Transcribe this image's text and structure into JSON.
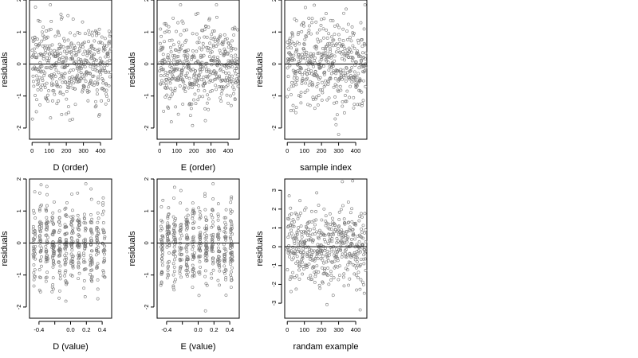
{
  "chart_data": [
    {
      "type": "scatter",
      "xlabel": "D (order)",
      "ylabel": "residuals",
      "xlim": [
        -15,
        465
      ],
      "ylim": [
        -2.35,
        2.0
      ],
      "xticks": [
        0,
        100,
        200,
        300,
        400
      ],
      "yticks": [
        -2,
        -1,
        0,
        1,
        2
      ],
      "reference_line_y": 0,
      "n_points": 460,
      "x_kind": "order",
      "y_range": [
        -2.2,
        1.85
      ]
    },
    {
      "type": "scatter",
      "xlabel": "E (order)",
      "ylabel": "residuals",
      "xlim": [
        -15,
        465
      ],
      "ylim": [
        -2.35,
        2.0
      ],
      "xticks": [
        0,
        100,
        200,
        300,
        400
      ],
      "yticks": [
        -2,
        -1,
        0,
        1,
        2
      ],
      "reference_line_y": 0,
      "n_points": 460,
      "x_kind": "order",
      "y_range": [
        -2.2,
        1.85
      ]
    },
    {
      "type": "scatter",
      "xlabel": "sample index",
      "ylabel": "residuals",
      "xlim": [
        -15,
        465
      ],
      "ylim": [
        -2.35,
        2.0
      ],
      "xticks": [
        0,
        100,
        200,
        300,
        400
      ],
      "yticks": [
        -2,
        -1,
        0,
        1,
        2
      ],
      "reference_line_y": 0,
      "n_points": 460,
      "x_kind": "order",
      "y_range": [
        -2.2,
        1.85
      ]
    },
    {
      "type": "scatter",
      "xlabel": "D (value)",
      "ylabel": "residuals",
      "xlim": [
        -0.52,
        0.52
      ],
      "ylim": [
        -2.35,
        2.0
      ],
      "xticks": [
        -0.4,
        -0.2,
        0.0,
        0.2,
        0.4
      ],
      "xtick_labels": [
        "-0.4",
        "",
        "0.0",
        "0.2",
        "0.4"
      ],
      "yticks": [
        -2,
        -1,
        0,
        1,
        2
      ],
      "reference_line_y": 0,
      "n_points": 460,
      "x_kind": "value",
      "x_levels": [
        -0.46,
        -0.38,
        -0.3,
        -0.22,
        -0.14,
        -0.06,
        0.02,
        0.1,
        0.18,
        0.26,
        0.34,
        0.42
      ],
      "y_range": [
        -2.2,
        1.85
      ]
    },
    {
      "type": "scatter",
      "xlabel": "E (value)",
      "ylabel": "residuals",
      "xlim": [
        -0.52,
        0.52
      ],
      "ylim": [
        -2.35,
        2.0
      ],
      "xticks": [
        -0.4,
        -0.2,
        0.0,
        0.2,
        0.4
      ],
      "xtick_labels": [
        "-0.4",
        "",
        "0.0",
        "0.2",
        "0.4"
      ],
      "yticks": [
        -2,
        -1,
        0,
        1,
        2
      ],
      "reference_line_y": 0,
      "n_points": 460,
      "x_kind": "value",
      "x_levels": [
        -0.46,
        -0.38,
        -0.3,
        -0.22,
        -0.14,
        -0.06,
        0.02,
        0.1,
        0.18,
        0.26,
        0.34,
        0.42
      ],
      "y_range": [
        -2.2,
        1.85
      ]
    },
    {
      "type": "scatter",
      "xlabel": "randam example",
      "ylabel": "residuals",
      "xlim": [
        -15,
        465
      ],
      "ylim": [
        -3.8,
        3.6
      ],
      "xticks": [
        0,
        100,
        200,
        300,
        400
      ],
      "yticks": [
        -3,
        -2,
        -1,
        0,
        1,
        2,
        3
      ],
      "reference_line_y": 0,
      "n_points": 460,
      "x_kind": "order",
      "y_range": [
        -3.5,
        3.5
      ]
    }
  ]
}
